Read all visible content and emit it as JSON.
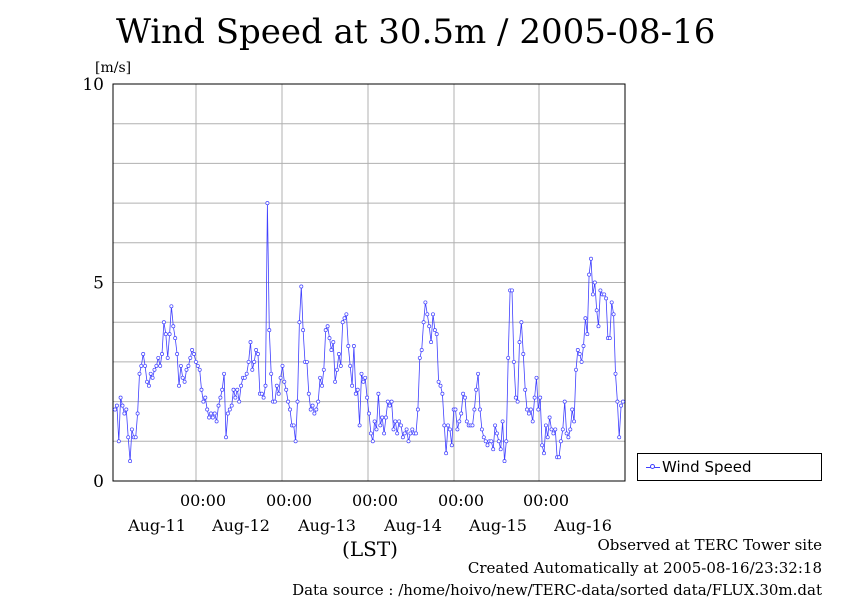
{
  "chart_data": {
    "type": "line",
    "title": "Wind Speed at 30.5m / 2005-08-16",
    "ylabel": "[m/s]",
    "xlabel": "(LST)",
    "ylim": [
      0,
      10
    ],
    "y_ticks": [
      "0",
      "5",
      "10"
    ],
    "x_time_ticks": [
      "00:00",
      "00:00",
      "00:00",
      "00:00",
      "00:00",
      "00:00"
    ],
    "x_date_labels": [
      "Aug-11",
      "Aug-12",
      "Aug-13",
      "Aug-14",
      "Aug-15",
      "Aug-16"
    ],
    "grid": true,
    "legend": "bottom-right",
    "series": [
      {
        "name": "Wind Speed",
        "color": "#4040ff",
        "values": [
          1.8,
          1.9,
          1.0,
          2.1,
          1.9,
          1.7,
          1.8,
          1.1,
          0.5,
          1.3,
          1.1,
          1.1,
          1.7,
          2.7,
          2.9,
          3.2,
          2.9,
          2.5,
          2.4,
          2.7,
          2.6,
          2.8,
          2.9,
          3.1,
          2.9,
          3.2,
          4.0,
          3.7,
          3.1,
          3.7,
          4.4,
          3.9,
          3.6,
          3.2,
          2.4,
          2.9,
          2.6,
          2.5,
          2.8,
          2.9,
          3.1,
          3.3,
          3.2,
          3.0,
          2.9,
          2.8,
          2.3,
          2.0,
          2.1,
          1.8,
          1.6,
          1.7,
          1.6,
          1.7,
          1.5,
          1.9,
          2.1,
          2.3,
          2.7,
          1.1,
          1.7,
          1.8,
          1.9,
          2.3,
          2.1,
          2.3,
          2.0,
          2.4,
          2.6,
          2.6,
          2.7,
          3.0,
          3.5,
          2.8,
          3.0,
          3.3,
          3.2,
          2.2,
          2.2,
          2.1,
          2.4,
          7.0,
          3.8,
          2.7,
          2.0,
          2.0,
          2.4,
          2.2,
          2.6,
          2.9,
          2.5,
          2.3,
          2.0,
          1.8,
          1.4,
          1.4,
          1.0,
          2.0,
          4.0,
          4.9,
          3.8,
          3.0,
          3.0,
          2.2,
          1.8,
          1.9,
          1.7,
          1.8,
          2.0,
          2.6,
          2.4,
          2.8,
          3.8,
          3.9,
          3.6,
          3.3,
          3.5,
          2.5,
          2.8,
          3.2,
          2.9,
          4.0,
          4.1,
          4.2,
          3.4,
          2.9,
          2.4,
          3.4,
          2.2,
          2.3,
          1.4,
          2.7,
          2.5,
          2.6,
          2.1,
          1.7,
          1.2,
          1.0,
          1.5,
          1.3,
          2.2,
          1.4,
          1.6,
          1.2,
          1.6,
          2.0,
          1.9,
          2.0,
          1.3,
          1.5,
          1.2,
          1.5,
          1.4,
          1.1,
          1.2,
          1.3,
          1.0,
          1.2,
          1.3,
          1.2,
          1.2,
          1.8,
          3.1,
          3.3,
          4.0,
          4.5,
          4.2,
          3.9,
          3.5,
          4.2,
          3.8,
          3.7,
          2.5,
          2.4,
          2.2,
          1.4,
          0.7,
          1.4,
          1.3,
          0.9,
          1.8,
          1.8,
          1.3,
          1.5,
          1.7,
          2.2,
          2.1,
          1.5,
          1.4,
          1.4,
          1.4,
          1.8,
          2.3,
          2.7,
          1.8,
          1.3,
          1.1,
          1.0,
          0.9,
          1.0,
          1.0,
          0.8,
          1.4,
          1.2,
          1.0,
          0.8,
          1.5,
          0.5,
          1.0,
          3.1,
          4.8,
          4.8,
          3.0,
          2.1,
          2.0,
          3.5,
          4.0,
          3.2,
          2.3,
          1.8,
          1.7,
          1.8,
          1.5,
          2.1,
          2.6,
          1.8,
          2.1,
          0.9,
          0.7,
          1.4,
          1.1,
          1.6,
          1.3,
          1.2,
          1.3,
          0.6,
          0.6,
          1.0,
          1.3,
          2.0,
          1.2,
          1.1,
          1.3,
          1.8,
          1.5,
          2.8,
          3.3,
          3.2,
          3.0,
          3.4,
          4.1,
          3.7,
          5.2,
          5.6,
          4.7,
          5.0,
          4.3,
          3.9,
          4.8,
          4.7,
          4.7,
          4.6,
          3.6,
          3.6,
          4.5,
          4.2,
          2.7,
          2.0,
          1.1,
          1.9,
          2.0
        ]
      }
    ]
  },
  "footer": {
    "site": "Observed at TERC Tower site",
    "created": "Created Automatically at 2005-08-16/23:32:18",
    "source": "Data source : /home/hoivo/new/TERC-data/sorted  data/FLUX.30m.dat"
  }
}
